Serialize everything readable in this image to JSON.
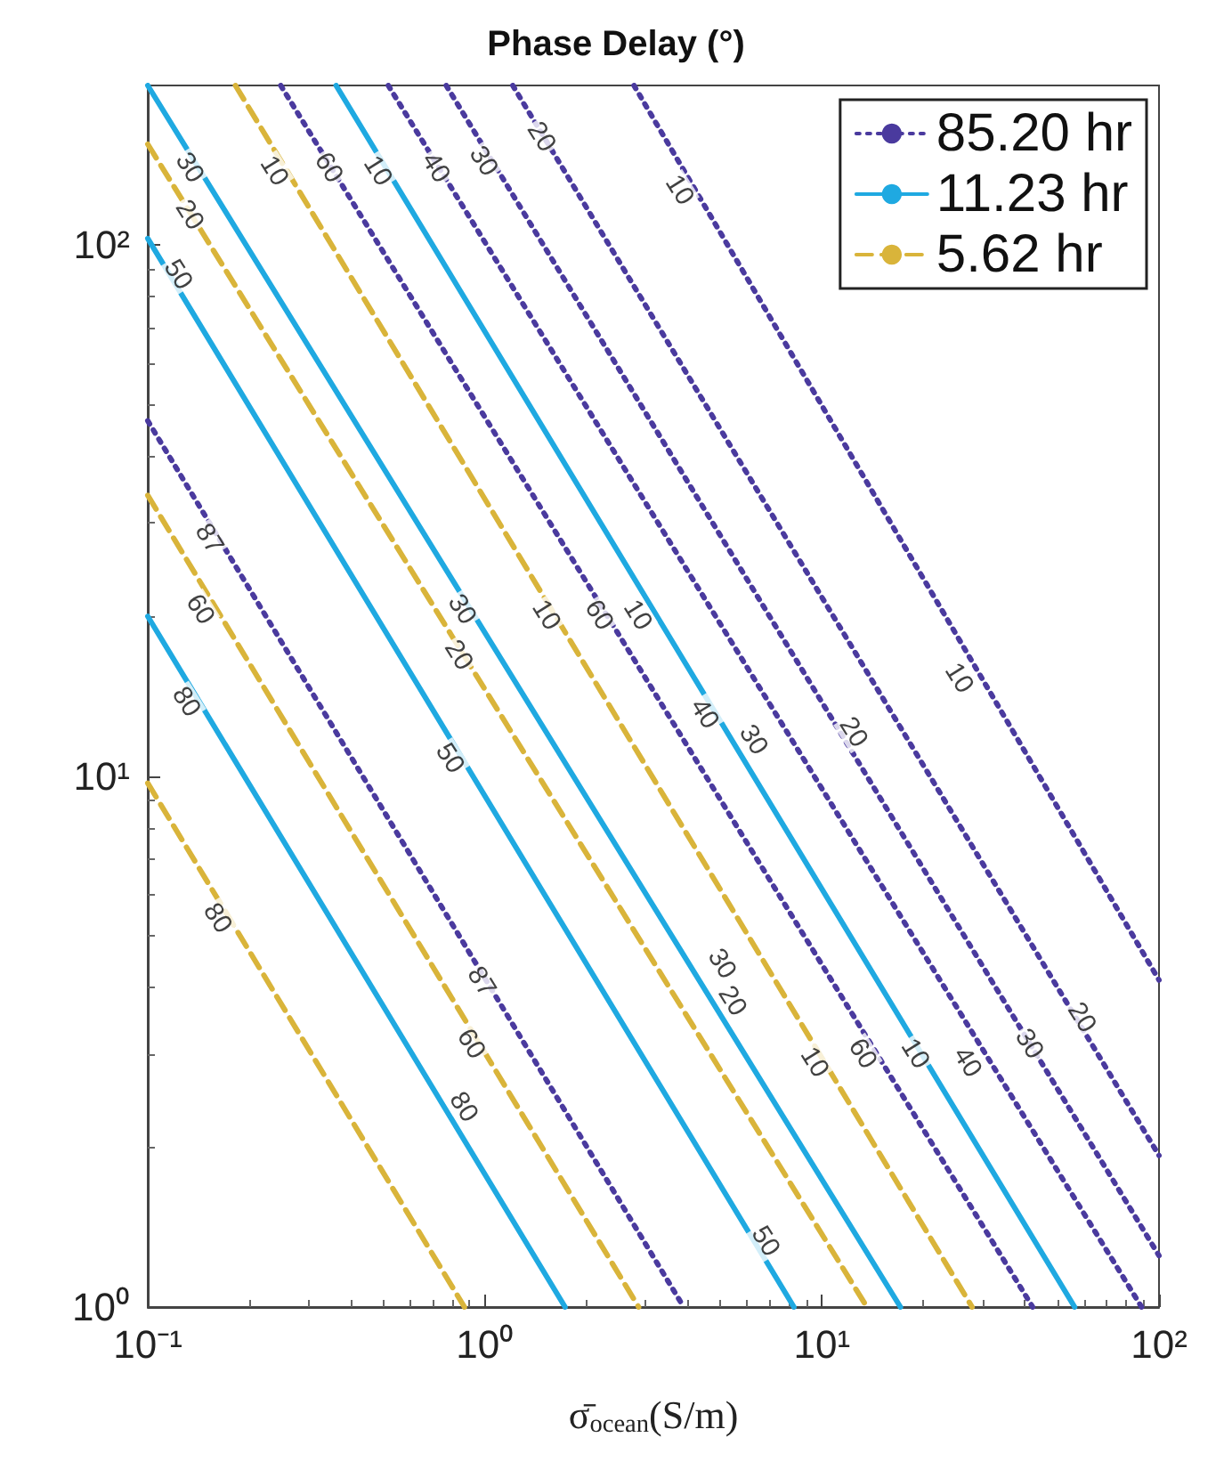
{
  "chart_data": {
    "type": "line",
    "title": "Phase Delay (°)",
    "xlabel": "σ̄$_{ocean}$(S/m)",
    "log": "xy",
    "grid": false,
    "legend": "top right",
    "marker": "none",
    "xlim": [
      0.1,
      100
    ],
    "ylim": [
      1,
      200
    ],
    "xticks": [
      {
        "value": 0.1,
        "label": "10⁻¹"
      },
      {
        "value": 1,
        "label": "10⁰"
      },
      {
        "value": 10,
        "label": "10¹"
      },
      {
        "value": 100,
        "label": "10²"
      }
    ],
    "yticks": [
      {
        "value": 1,
        "label": "10⁰"
      },
      {
        "value": 10,
        "label": "10¹"
      },
      {
        "value": 100,
        "label": "10²"
      }
    ],
    "series": [
      {
        "name": "85.20 hr",
        "color": "#4a3a9e",
        "line_style": "dotted",
        "x": [
          0.1,
          3.89
        ],
        "values": [
          46.7,
          1
        ]
      },
      {
        "color": "#4a3a9e",
        "line_style": "dotted",
        "x": [
          0.248,
          42.2
        ],
        "values": [
          200,
          1
        ]
      },
      {
        "color": "#4a3a9e",
        "line_style": "dotted",
        "x": [
          0.517,
          88.8
        ],
        "values": [
          200,
          1
        ]
      },
      {
        "color": "#4a3a9e",
        "line_style": "dotted",
        "x": [
          0.768,
          100
        ],
        "values": [
          200,
          1.25
        ]
      },
      {
        "color": "#4a3a9e",
        "line_style": "dotted",
        "x": [
          1.21,
          100
        ],
        "values": [
          200,
          1.93
        ]
      },
      {
        "color": "#4a3a9e",
        "line_style": "dotted",
        "x": [
          2.77,
          100
        ],
        "values": [
          200,
          4.13
        ]
      },
      {
        "name": "11.23 hr",
        "color": "#1fa9e1",
        "line_style": "solid",
        "x": [
          0.1,
          1.73
        ],
        "values": [
          20,
          1
        ]
      },
      {
        "color": "#1fa9e1",
        "line_style": "solid",
        "x": [
          0.1,
          8.26
        ],
        "values": [
          103,
          1
        ]
      },
      {
        "color": "#1fa9e1",
        "line_style": "solid",
        "x": [
          0.1,
          17.1
        ],
        "values": [
          200,
          1
        ]
      },
      {
        "color": "#1fa9e1",
        "line_style": "solid",
        "x": [
          0.362,
          56.2
        ],
        "values": [
          200,
          1
        ]
      },
      {
        "name": "5.62 hr",
        "color": "#d9b43a",
        "line_style": "dashed",
        "x": [
          0.1,
          0.87
        ],
        "values": [
          9.7,
          1
        ]
      },
      {
        "color": "#d9b43a",
        "line_style": "dashed",
        "x": [
          0.1,
          2.86
        ],
        "values": [
          33.8,
          1
        ]
      },
      {
        "color": "#d9b43a",
        "line_style": "dashed",
        "x": [
          0.1,
          13.6
        ],
        "values": [
          155,
          1
        ]
      },
      {
        "color": "#d9b43a",
        "line_style": "dashed",
        "x": [
          0.182,
          27.9
        ],
        "values": [
          200,
          1
        ]
      }
    ],
    "annotations": [
      {
        "text": "30",
        "x": 0.133,
        "y": 140
      },
      {
        "text": "20",
        "x": 0.133,
        "y": 114
      },
      {
        "text": "10",
        "x": 0.237,
        "y": 138
      },
      {
        "text": "60",
        "x": 0.344,
        "y": 140
      },
      {
        "text": "10",
        "x": 0.481,
        "y": 138
      },
      {
        "text": "40",
        "x": 0.715,
        "y": 140
      },
      {
        "text": "30",
        "x": 0.99,
        "y": 144
      },
      {
        "text": "20",
        "x": 1.47,
        "y": 160
      },
      {
        "text": "10",
        "x": 3.78,
        "y": 127
      },
      {
        "text": "50",
        "x": 0.123,
        "y": 88
      },
      {
        "text": "87",
        "x": 0.152,
        "y": 28
      },
      {
        "text": "60",
        "x": 0.143,
        "y": 20.6
      },
      {
        "text": "80",
        "x": 0.13,
        "y": 13.8
      },
      {
        "text": "80",
        "x": 0.161,
        "y": 5.4
      },
      {
        "text": "30",
        "x": 0.855,
        "y": 20.6
      },
      {
        "text": "20",
        "x": 0.836,
        "y": 16.9
      },
      {
        "text": "50",
        "x": 0.787,
        "y": 10.8
      },
      {
        "text": "10",
        "x": 1.52,
        "y": 20.1
      },
      {
        "text": "60",
        "x": 2.18,
        "y": 20.1
      },
      {
        "text": "10",
        "x": 2.84,
        "y": 20.1
      },
      {
        "text": "40",
        "x": 4.48,
        "y": 13.1
      },
      {
        "text": "30",
        "x": 6.26,
        "y": 11.7
      },
      {
        "text": "20",
        "x": 12.4,
        "y": 12.1
      },
      {
        "text": "10",
        "x": 25.5,
        "y": 15.3
      },
      {
        "text": "87",
        "x": 0.977,
        "y": 4.1
      },
      {
        "text": "60",
        "x": 0.91,
        "y": 3.13
      },
      {
        "text": "80",
        "x": 0.865,
        "y": 2.38
      },
      {
        "text": "50",
        "x": 6.8,
        "y": 1.33
      },
      {
        "text": "30",
        "x": 5.05,
        "y": 4.43
      },
      {
        "text": "20",
        "x": 5.42,
        "y": 3.77
      },
      {
        "text": "10",
        "x": 9.5,
        "y": 2.89
      },
      {
        "text": "60",
        "x": 13.2,
        "y": 3.0
      },
      {
        "text": "10",
        "x": 18.9,
        "y": 3.0
      },
      {
        "text": "40",
        "x": 27,
        "y": 2.89
      },
      {
        "text": "30",
        "x": 41.2,
        "y": 3.13
      },
      {
        "text": "20",
        "x": 59,
        "y": 3.51
      }
    ]
  }
}
